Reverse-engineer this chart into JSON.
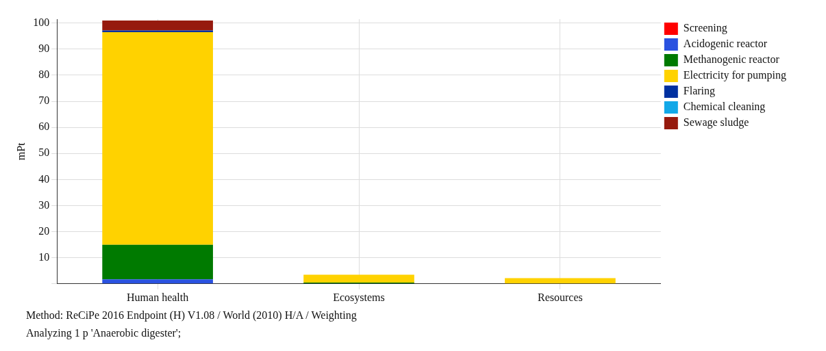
{
  "chart_data": {
    "type": "bar",
    "stacked": true,
    "ylabel": "mPt",
    "categories": [
      "Human health",
      "Ecosystems",
      "Resources"
    ],
    "series": [
      {
        "name": "Screening",
        "color": "#ff0000",
        "values": [
          0,
          0,
          0
        ]
      },
      {
        "name": "Acidogenic reactor",
        "color": "#2a52e0",
        "values": [
          1.7,
          null,
          0
        ]
      },
      {
        "name": "Methanogenic reactor",
        "color": "#007a00",
        "values": [
          13.3,
          0.5,
          null
        ]
      },
      {
        "name": "Electricity for pumping",
        "color": "#ffd200",
        "values": [
          81.5,
          3.0,
          2.2
        ]
      },
      {
        "name": "Flaring",
        "color": "#0030a0",
        "values": [
          0.7,
          0,
          0
        ]
      },
      {
        "name": "Chemical cleaning",
        "color": "#12a8e8",
        "values": [
          0,
          0,
          0
        ]
      },
      {
        "name": "Sewage sludge",
        "color": "#961a0e",
        "values": [
          3.8,
          null,
          0
        ]
      }
    ],
    "ylim": [
      0,
      101.5
    ],
    "yticks": [
      {
        "value": 0,
        "label": null
      },
      10,
      20,
      30,
      40,
      50,
      60,
      70,
      80,
      90,
      100
    ],
    "grid": true,
    "legend": "right",
    "annotations": [
      "Method: ReCiPe 2016 Endpoint (H) V1.08 / World (2010) H/A / Weighting",
      "Analyzing 1 p 'Anaerobic digester';"
    ]
  }
}
